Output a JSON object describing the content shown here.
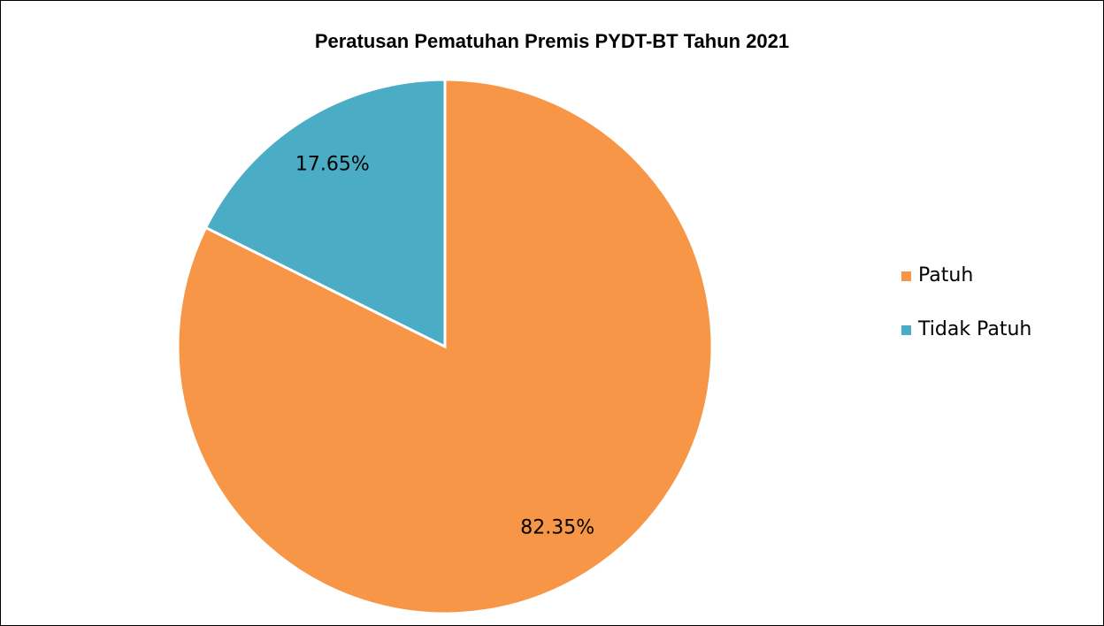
{
  "chart_data": {
    "type": "pie",
    "title": "Peratusan Pematuhan Premis PYDT-BT Tahun 2021",
    "categories": [
      "Patuh",
      "Tidak Patuh"
    ],
    "values": [
      82.35,
      17.65
    ],
    "value_labels": [
      "82.35%",
      "17.65%"
    ],
    "colors": [
      "#f79646",
      "#4bacc6"
    ],
    "legend": "right"
  }
}
